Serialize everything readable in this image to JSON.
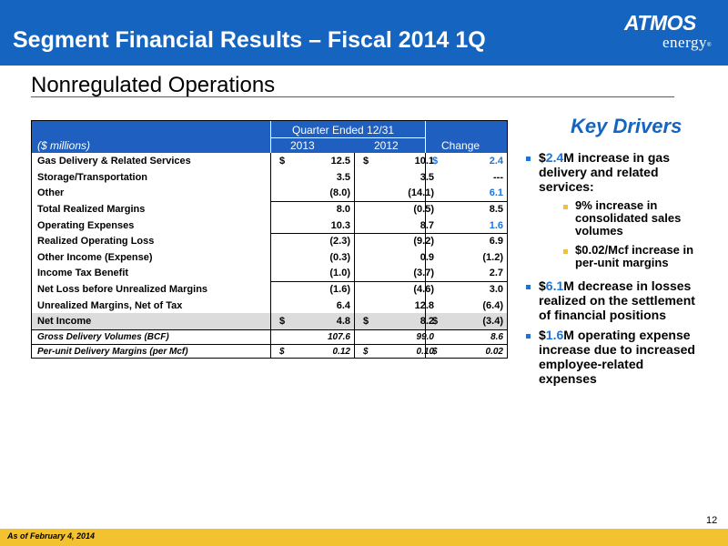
{
  "header": {
    "title": "Segment Financial Results – Fiscal 2014 1Q",
    "logo_brand": "ATMOS",
    "logo_sub": "energy",
    "logo_reg": "®"
  },
  "subtitle": "Nonregulated Operations",
  "table": {
    "group_header": "Quarter Ended 12/31",
    "units_label": "($ millions)",
    "col_2013": "2013",
    "col_2012": "2012",
    "col_change": "Change",
    "rows": [
      {
        "label": "Gas Delivery & Related Services",
        "c1_cur": "$",
        "c1": "12.5",
        "c2_cur": "$",
        "c2": "10.1",
        "c3_cur": "$",
        "c3": "2.4"
      },
      {
        "label": "Storage/Transportation",
        "c1": "3.5",
        "c2": "3.5",
        "c3": "---"
      },
      {
        "label": "Other",
        "c1": "(8.0)",
        "c2": "(14.1)",
        "c3": "6.1"
      },
      {
        "label": "Total Realized Margins",
        "c1": "8.0",
        "c2": "(0.5)",
        "c3": "8.5"
      },
      {
        "label": "Operating Expenses",
        "c1": "10.3",
        "c2": "8.7",
        "c3": "1.6"
      },
      {
        "label": "Realized Operating Loss",
        "c1": "(2.3)",
        "c2": "(9.2)",
        "c3": "6.9"
      },
      {
        "label": "Other Income (Expense)",
        "c1": "(0.3)",
        "c2": "0.9",
        "c3": "(1.2)"
      },
      {
        "label": "Income Tax Benefit",
        "c1": "(1.0)",
        "c2": "(3.7)",
        "c3": "2.7"
      },
      {
        "label": "Net Loss before Unrealized Margins",
        "c1": "(1.6)",
        "c2": "(4.6)",
        "c3": "3.0"
      },
      {
        "label": "Unrealized Margins, Net of Tax",
        "c1": "6.4",
        "c2": "12.8",
        "c3": "(6.4)"
      },
      {
        "label": "Net Income",
        "c1_cur": "$",
        "c1": "4.8",
        "c2_cur": "$",
        "c2": "8.2",
        "c3_cur": "$",
        "c3": "(3.4)"
      },
      {
        "label": "Gross Delivery Volumes (BCF)",
        "c1": "107.6",
        "c2": "99.0",
        "c3": "8.6"
      },
      {
        "label": "Per-unit Delivery Margins (per Mcf)",
        "c1_cur": "$",
        "c1": "0.12",
        "c2_cur": "$",
        "c2": "0.10",
        "c3_cur": "$",
        "c3": "0.02"
      }
    ]
  },
  "key_drivers": {
    "title": "Key Drivers",
    "items": [
      {
        "prefix": "$",
        "highlight": "2.4",
        "line1_rest": "M increase in gas",
        "line2": "delivery and related",
        "line3": "services:"
      },
      {
        "prefix": "$",
        "highlight": "6.1",
        "line1_rest": "M decrease in losses",
        "line2": "realized on the settlement",
        "line3": "of financial positions"
      },
      {
        "prefix": "$",
        "highlight": "1.6",
        "line1_rest": "M operating expense",
        "line2": "increase due to increased",
        "line3": "employee-related",
        "line4": "expenses"
      }
    ],
    "sub_items": [
      {
        "line1": "9% increase in",
        "line2": "consolidated sales",
        "line3": "volumes"
      },
      {
        "line1": "$0.02/Mcf increase in",
        "line2": "per-unit margins"
      }
    ]
  },
  "colors": {
    "brand_blue": "#1565c0",
    "table_header_blue": "#1e5fc0",
    "highlight_blue": "#1e73d8",
    "footer_gold": "#f2c230"
  },
  "page_number": "12",
  "footer": "As of February 4, 2014"
}
